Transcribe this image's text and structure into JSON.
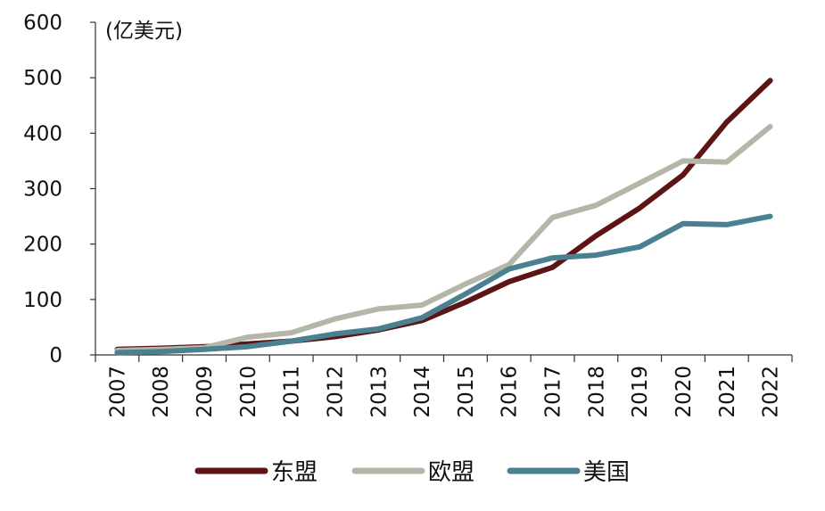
{
  "chart_data": {
    "type": "line",
    "unit_label": "(亿美元)",
    "ylim": [
      0,
      600
    ],
    "y_ticks": [
      "0",
      "100",
      "200",
      "300",
      "400",
      "500",
      "600"
    ],
    "categories": [
      "2007",
      "2008",
      "2009",
      "2010",
      "2011",
      "2012",
      "2013",
      "2014",
      "2015",
      "2016",
      "2017",
      "2018",
      "2019",
      "2020",
      "2021",
      "2022"
    ],
    "grid": false,
    "legend_position": "bottom",
    "series": [
      {
        "name": "东盟",
        "color": "#5c1414",
        "values": [
          10,
          12,
          15,
          20,
          25,
          33,
          45,
          62,
          95,
          132,
          158,
          215,
          265,
          325,
          420,
          495
        ]
      },
      {
        "name": "欧盟",
        "color": "#b4b6a8",
        "values": [
          8,
          10,
          13,
          32,
          40,
          65,
          83,
          90,
          128,
          163,
          248,
          270,
          310,
          350,
          348,
          412
        ]
      },
      {
        "name": "美国",
        "color": "#4a8090",
        "values": [
          4,
          6,
          10,
          15,
          25,
          38,
          47,
          67,
          110,
          155,
          175,
          180,
          195,
          237,
          235,
          250
        ]
      }
    ]
  }
}
